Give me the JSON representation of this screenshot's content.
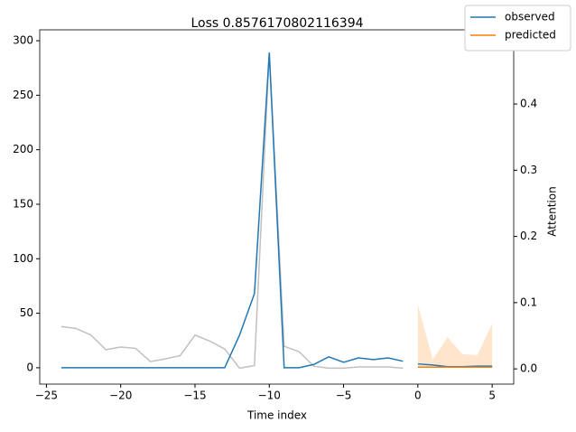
{
  "chart_data": {
    "type": "line",
    "title": "Loss 0.8576170802116394",
    "xlabel": "Time index",
    "y2label": "Attention",
    "xlim": [
      -25.45,
      6.45
    ],
    "ylim": [
      -15,
      310
    ],
    "y2lim": [
      -0.023,
      0.512
    ],
    "xticks": [
      {
        "value": -25,
        "label": "−25"
      },
      {
        "value": -20,
        "label": "−20"
      },
      {
        "value": -15,
        "label": "−15"
      },
      {
        "value": -10,
        "label": "−10"
      },
      {
        "value": -5,
        "label": "−5"
      },
      0,
      5
    ],
    "yticks": [
      0,
      50,
      100,
      150,
      200,
      250,
      300
    ],
    "y2ticks": [
      {
        "value": 0,
        "label": "0.0"
      },
      {
        "value": 0.1,
        "label": "0.1"
      },
      {
        "value": 0.2,
        "label": "0.2"
      },
      {
        "value": 0.3,
        "label": "0.3"
      },
      {
        "value": 0.4,
        "label": "0.4"
      }
    ],
    "band": {
      "color": "#ffe5cc",
      "x": [
        0,
        1,
        2,
        3,
        4,
        5
      ],
      "lower": [
        0,
        0,
        0,
        0,
        0,
        0
      ],
      "upper": [
        58,
        7.5,
        28,
        12.5,
        11.5,
        40.5
      ]
    },
    "series": [
      {
        "color": "#c0c0c0",
        "axis": "y2",
        "x": [
          -24,
          -23,
          -22,
          -21,
          -20,
          -19,
          -18,
          -17,
          -16,
          -15,
          -14,
          -13,
          -12,
          -11,
          -10,
          -9,
          -8,
          -7,
          -6,
          -5,
          -4,
          -3,
          -2,
          -1
        ],
        "values": [
          0.064,
          0.061,
          0.051,
          0.029,
          0.033,
          0.031,
          0.011,
          0.015,
          0.02,
          0.051,
          0.042,
          0.03,
          0.001,
          0.005,
          0.478,
          0.034,
          0.026,
          0.004,
          0.001,
          0.001,
          0.003,
          0.003,
          0.003,
          0.001
        ]
      },
      {
        "name": "observed",
        "color": "#1f77b4",
        "x": [
          -24,
          -23,
          -22,
          -21,
          -20,
          -19,
          -18,
          -17,
          -16,
          -15,
          -14,
          -13,
          -12,
          -11,
          -10,
          -9,
          -8,
          -7,
          -6,
          -5,
          -4,
          -3,
          -2,
          -1
        ],
        "values": [
          0,
          0,
          0,
          0,
          0,
          0,
          0,
          0,
          0,
          0,
          0,
          0,
          30,
          68,
          289,
          0,
          0,
          3,
          10,
          5,
          9,
          7.5,
          9,
          6
        ]
      },
      {
        "color": "#1f77b4",
        "x": [
          0,
          1,
          2,
          3,
          4,
          5
        ],
        "values": [
          3.5,
          2.5,
          1,
          1,
          1.5,
          1.5
        ]
      },
      {
        "name": "predicted",
        "color": "#ff7f0e",
        "x": [
          0,
          1,
          2,
          3,
          4,
          5
        ],
        "values": [
          0.5,
          0.5,
          0.5,
          0.5,
          0.5,
          0.5
        ]
      }
    ],
    "legend": "upper right"
  }
}
